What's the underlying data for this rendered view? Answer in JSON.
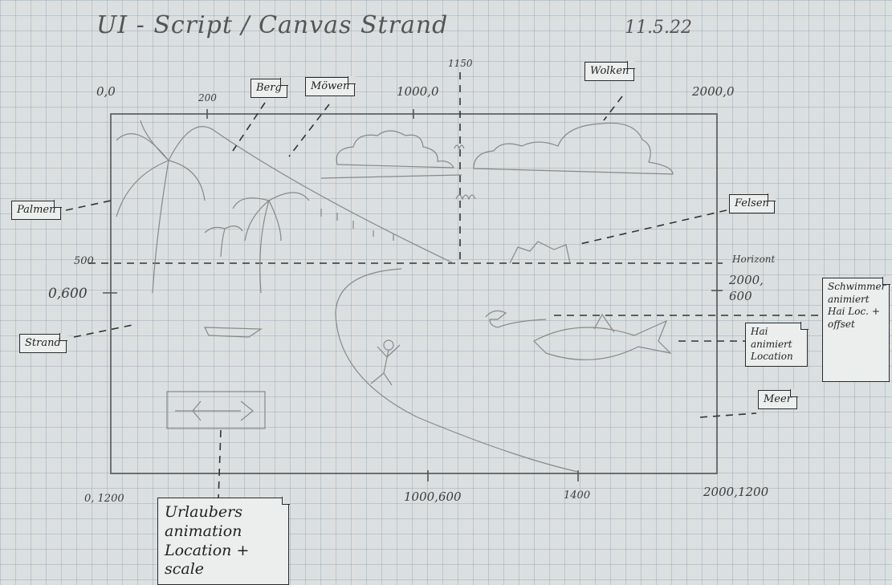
{
  "header": {
    "title": "UI - Script / Canvas Strand",
    "date": "11.5.22"
  },
  "coordinates": {
    "top_left": "0,0",
    "x_200": "200",
    "top_mid": "1000,0",
    "x_1150": "1150",
    "top_right": "2000,0",
    "y_500": "500",
    "left_600": "0,600",
    "right_600": "2000, 600",
    "bottom_left": "0, 1200",
    "bottom_mid": "1000,600",
    "x_1400": "1400",
    "bottom_right": "2000,1200",
    "horizont": "Horizont"
  },
  "labels": {
    "berg": "Berg",
    "moewen": "Möwen",
    "wolken": "Wolken",
    "palmen": "Palmen",
    "felsen": "Felsen",
    "strand": "Strand",
    "hai": "Hai animiert Location",
    "schwimmer": "Schwimmer animiert Hai Loc. + offset",
    "meer": "Meer",
    "urlauber": "Urlaubers animation Location + scale"
  }
}
